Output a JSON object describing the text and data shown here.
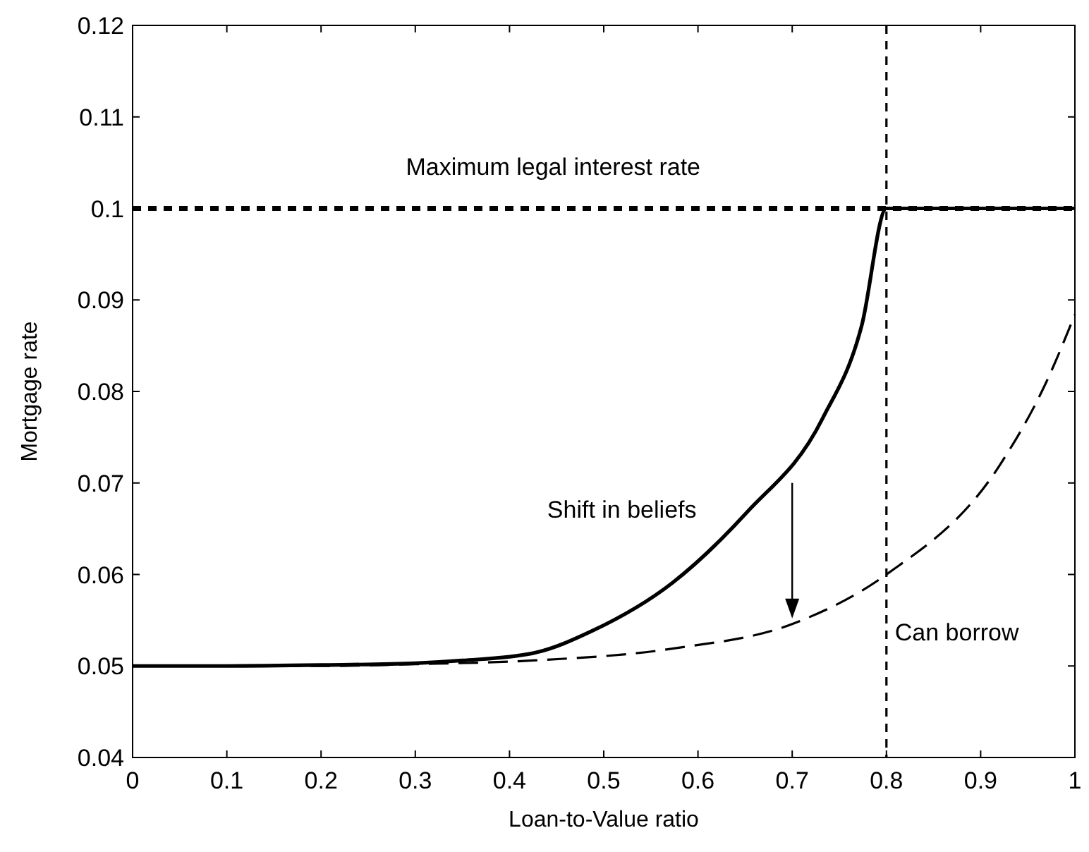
{
  "chart_data": {
    "type": "line",
    "xlabel": "Loan-to-Value ratio",
    "ylabel": "Mortgage rate",
    "xlim": [
      0,
      1
    ],
    "xticks": [
      0,
      0.1,
      0.2,
      0.3,
      0.4,
      0.5,
      0.6,
      0.7,
      0.8,
      0.9,
      1
    ],
    "ylim": [
      0.04,
      0.12
    ],
    "yticks": [
      0.04,
      0.05,
      0.06,
      0.07,
      0.08,
      0.09,
      0.1,
      0.11,
      0.12
    ],
    "grid": false,
    "marker": "none",
    "series": [
      {
        "color": "#000000",
        "line_style": "solid",
        "x": [
          0,
          0.1,
          0.2,
          0.3,
          0.35,
          0.425,
          0.489,
          0.573,
          0.652,
          0.732,
          0.774,
          0.8,
          1
        ],
        "values": [
          0.05,
          0.05,
          0.0501,
          0.0503,
          0.0506,
          0.0514,
          0.0539,
          0.0591,
          0.0668,
          0.077,
          0.0873,
          0.1,
          0.1
        ]
      },
      {
        "color": "#000000",
        "line_style": "dashed",
        "x": [
          0,
          0.2,
          0.3,
          0.425,
          0.573,
          0.703,
          0.8,
          0.92,
          0.97,
          1
        ],
        "values": [
          0.05,
          0.05,
          0.0502,
          0.0506,
          0.0519,
          0.0547,
          0.06,
          0.0719,
          0.0811,
          0.0884
        ]
      }
    ],
    "ref_lines": [
      {
        "axis": "y",
        "value": 0.1,
        "label": "Maximum legal interest rate",
        "color": "#000000",
        "line_style": "dashed"
      },
      {
        "axis": "x",
        "value": 0.8,
        "label": "Can borrow",
        "color": "#000000",
        "line_style": "dashed"
      }
    ],
    "annotations": [
      "Shift in beliefs"
    ]
  }
}
